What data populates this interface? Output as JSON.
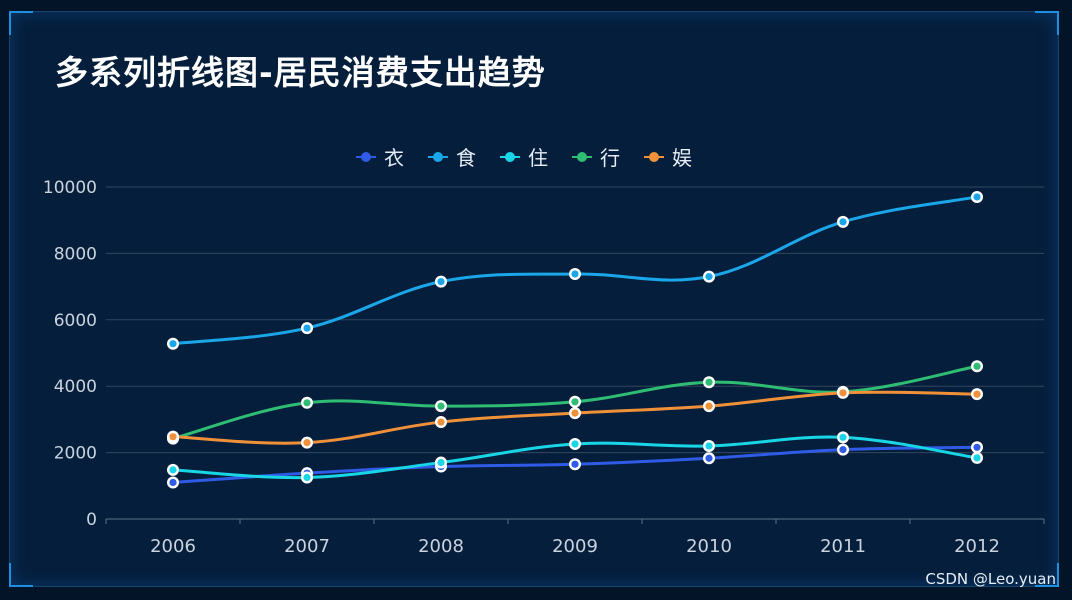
{
  "chart_data": {
    "type": "line",
    "title": "多系列折线图-居民消费支出趋势",
    "categories": [
      "2006",
      "2007",
      "2008",
      "2009",
      "2010",
      "2011",
      "2012"
    ],
    "ylim": [
      0,
      10000
    ],
    "y_ticks": [
      "0",
      "2000",
      "4000",
      "6000",
      "8000",
      "10000"
    ],
    "grid": true,
    "smooth": true,
    "legend_position": "top-center",
    "series": [
      {
        "name": "衣",
        "color": "#2f5be6",
        "values": [
          1100,
          1380,
          1580,
          1650,
          1830,
          2090,
          2160
        ]
      },
      {
        "name": "食",
        "color": "#1aa6e8",
        "values": [
          5280,
          5750,
          7150,
          7380,
          7300,
          8950,
          9700
        ]
      },
      {
        "name": "住",
        "color": "#18d6e6",
        "values": [
          1480,
          1250,
          1700,
          2260,
          2200,
          2460,
          1840
        ]
      },
      {
        "name": "行",
        "color": "#2fbd73",
        "values": [
          2420,
          3500,
          3400,
          3530,
          4120,
          3830,
          4600
        ]
      },
      {
        "name": "娱",
        "color": "#f0913a",
        "values": [
          2480,
          2300,
          2920,
          3190,
          3400,
          3800,
          3760
        ]
      }
    ]
  },
  "watermark": "CSDN @Leo.yuan"
}
